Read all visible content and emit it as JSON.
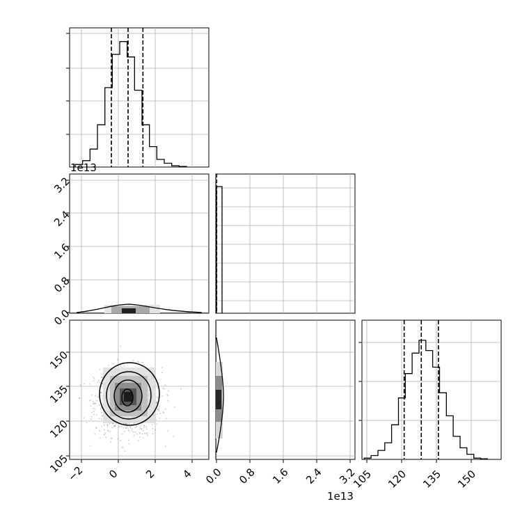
{
  "chart_data": [
    {
      "type": "histogram",
      "panel": "hist-param-1",
      "grid": true,
      "x": [
        -2.3,
        -1.9,
        -1.5,
        -1.1,
        -0.7,
        -0.3,
        0.1,
        0.5,
        0.9,
        1.3,
        1.7,
        2.1,
        2.5,
        2.9,
        3.3,
        3.7
      ],
      "counts": [
        0.02,
        0.05,
        0.14,
        0.33,
        0.62,
        0.88,
        0.98,
        0.86,
        0.6,
        0.33,
        0.16,
        0.06,
        0.03,
        0.01,
        0.005,
        0.0
      ],
      "quantiles": [
        -0.35,
        0.55,
        1.35
      ],
      "xlim": [
        -2.6,
        4.9
      ]
    },
    {
      "type": "scatter-density",
      "panel": "joint-param-1-param-2",
      "grid": true,
      "xlim": [
        -2.6,
        4.9
      ],
      "ylim": [
        0.0,
        3.3
      ],
      "center": [
        0.55,
        0.01
      ],
      "ticks_y": [
        "0.0",
        "0.8",
        "1.6",
        "2.4",
        "3.2"
      ],
      "offset_y": "1e13"
    },
    {
      "type": "histogram",
      "panel": "hist-param-2",
      "grid": true,
      "x": [
        0.0,
        0.12
      ],
      "counts": [
        1.0
      ],
      "xlim": [
        -0.05,
        3.3
      ]
    },
    {
      "type": "scatter-density",
      "panel": "joint-param-1-param-3",
      "grid": true,
      "xlim": [
        -2.6,
        4.9
      ],
      "ylim": [
        104,
        165
      ],
      "center": [
        0.55,
        129
      ],
      "spread": [
        0.9,
        7.5
      ],
      "ticks_x": [
        "−2",
        "0",
        "2",
        "4"
      ],
      "ticks_y": [
        "105",
        "120",
        "135",
        "150"
      ]
    },
    {
      "type": "scatter-density",
      "panel": "joint-param-2-param-3",
      "grid": true,
      "xlim": [
        -0.05,
        3.3
      ],
      "ylim": [
        104,
        165
      ],
      "center": [
        0.02,
        129
      ],
      "ticks_x": [
        "0.0",
        "0.8",
        "1.6",
        "2.4",
        "3.2"
      ],
      "offset_x": "1e13"
    },
    {
      "type": "histogram",
      "panel": "hist-param-3",
      "grid": true,
      "x": [
        104,
        107,
        110,
        113,
        116,
        119,
        122,
        125,
        128,
        131,
        134,
        137,
        140,
        143,
        146,
        149,
        152,
        155,
        158
      ],
      "counts": [
        0.01,
        0.03,
        0.07,
        0.13,
        0.27,
        0.48,
        0.67,
        0.83,
        0.93,
        0.85,
        0.72,
        0.52,
        0.34,
        0.18,
        0.09,
        0.04,
        0.01,
        0.005
      ],
      "quantiles": [
        121.5,
        129.0,
        136.5
      ],
      "xlim": [
        103,
        164
      ],
      "ticks_x": [
        "105",
        "120",
        "135",
        "150"
      ]
    }
  ]
}
